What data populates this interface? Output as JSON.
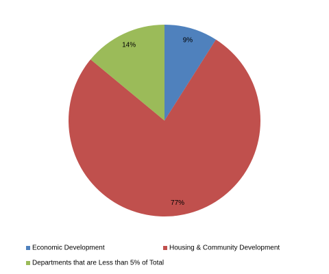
{
  "chart_data": {
    "type": "pie",
    "categories": [
      "Economic Development",
      "Housing & Community Development",
      "Departments that are Less than 5% of Total"
    ],
    "values": [
      9,
      77,
      14
    ],
    "value_labels": [
      "9%",
      "77%",
      "14%"
    ],
    "colors": [
      "#4f81bd",
      "#c0504d",
      "#9bbb59"
    ]
  }
}
